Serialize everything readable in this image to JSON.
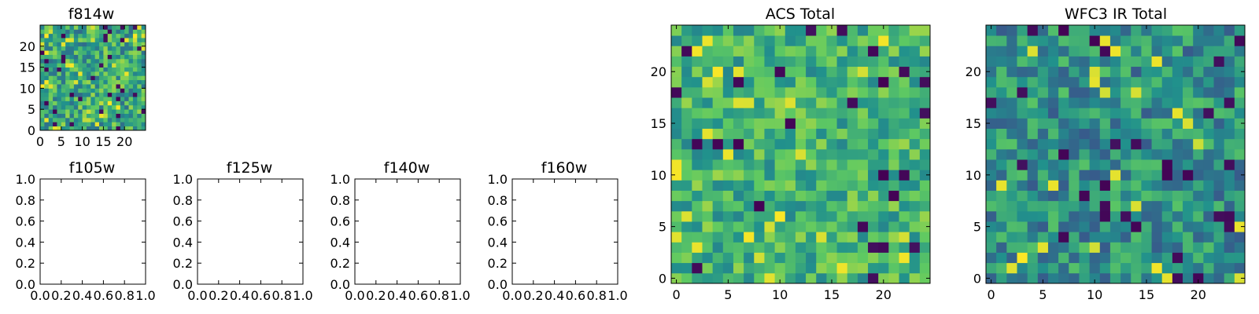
{
  "colormap": {
    "name": "viridis",
    "stops": [
      "#440154",
      "#3b528b",
      "#21918c",
      "#5ec962",
      "#fde725"
    ]
  },
  "chart_data": [
    {
      "type": "heatmap",
      "title": "f814w",
      "grid": [
        25,
        25
      ],
      "seed": 11,
      "style": "noise",
      "filled": true,
      "xlim": [
        0,
        25
      ],
      "ylim": [
        0,
        25
      ],
      "xticks": [
        "0",
        "5",
        "10",
        "15",
        "20"
      ],
      "yticks": [
        "0",
        "5",
        "10",
        "15",
        "20"
      ],
      "grid_lines": false
    },
    {
      "type": "heatmap",
      "title": "f105w",
      "filled": false,
      "xlim": [
        0.0,
        1.0
      ],
      "ylim": [
        0.0,
        1.0
      ],
      "xticks": [
        "0.0",
        "0.2",
        "0.4",
        "0.6",
        "0.8",
        "1.0"
      ],
      "yticks": [
        "0.0",
        "0.2",
        "0.4",
        "0.6",
        "0.8",
        "1.0"
      ],
      "grid_lines": false
    },
    {
      "type": "heatmap",
      "title": "f125w",
      "filled": false,
      "xlim": [
        0.0,
        1.0
      ],
      "ylim": [
        0.0,
        1.0
      ],
      "xticks": [
        "0.0",
        "0.2",
        "0.4",
        "0.6",
        "0.8",
        "1.0"
      ],
      "yticks": [
        "0.0",
        "0.2",
        "0.4",
        "0.6",
        "0.8",
        "1.0"
      ],
      "grid_lines": false
    },
    {
      "type": "heatmap",
      "title": "f140w",
      "filled": false,
      "xlim": [
        0.0,
        1.0
      ],
      "ylim": [
        0.0,
        1.0
      ],
      "xticks": [
        "0.0",
        "0.2",
        "0.4",
        "0.6",
        "0.8",
        "1.0"
      ],
      "yticks": [
        "0.0",
        "0.2",
        "0.4",
        "0.6",
        "0.8",
        "1.0"
      ],
      "grid_lines": false
    },
    {
      "type": "heatmap",
      "title": "f160w",
      "filled": false,
      "xlim": [
        0.0,
        1.0
      ],
      "ylim": [
        0.0,
        1.0
      ],
      "xticks": [
        "0.0",
        "0.2",
        "0.4",
        "0.6",
        "0.8",
        "1.0"
      ],
      "yticks": [
        "0.0",
        "0.2",
        "0.4",
        "0.6",
        "0.8",
        "1.0"
      ],
      "grid_lines": false
    },
    {
      "type": "heatmap",
      "title": "ACS Total",
      "grid": [
        25,
        25
      ],
      "seed": 29,
      "style": "bright",
      "filled": true,
      "xlim": [
        -0.5,
        24.5
      ],
      "ylim": [
        -0.5,
        24.5
      ],
      "xticks": [
        "0",
        "5",
        "10",
        "15",
        "20"
      ],
      "yticks": [
        "0",
        "5",
        "10",
        "15",
        "20"
      ],
      "grid_lines": false
    },
    {
      "type": "heatmap",
      "title": "WFC3 IR Total",
      "grid": [
        25,
        25
      ],
      "seed": 53,
      "style": "dim",
      "filled": true,
      "xlim": [
        -0.5,
        24.5
      ],
      "ylim": [
        -0.5,
        24.5
      ],
      "xticks": [
        "0",
        "5",
        "10",
        "15",
        "20"
      ],
      "yticks": [
        "0",
        "5",
        "10",
        "15",
        "20"
      ],
      "grid_lines": false
    }
  ]
}
